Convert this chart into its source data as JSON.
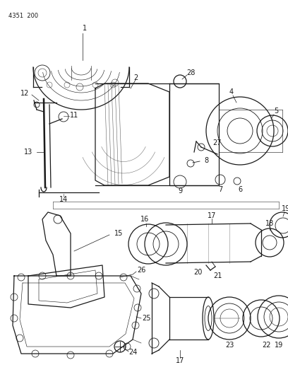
{
  "header": "4351  200",
  "bg_color": "#ffffff",
  "line_color": "#1a1a1a",
  "fig_width": 4.08,
  "fig_height": 5.33,
  "dpi": 100
}
